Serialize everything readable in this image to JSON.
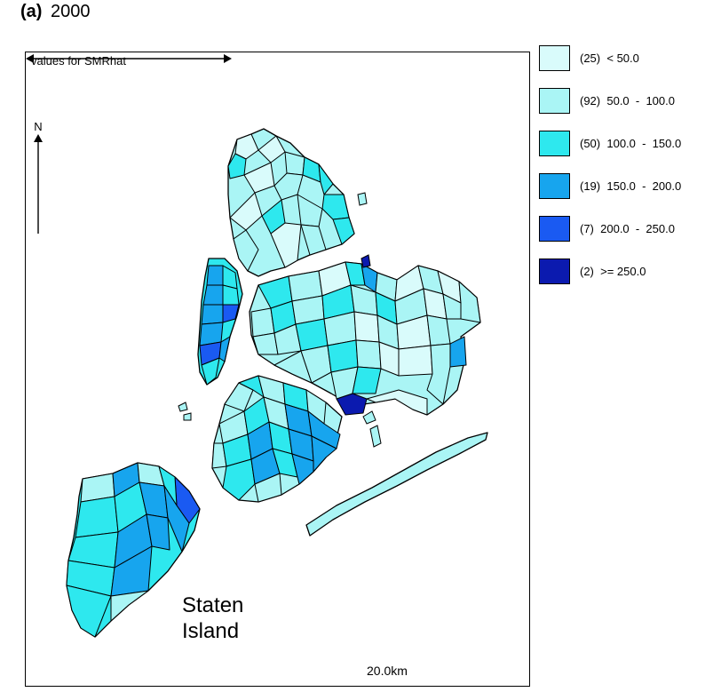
{
  "figure": {
    "panel_letter": "(a)",
    "year": "2000"
  },
  "map": {
    "caption": "values for SMRhat",
    "north_label": "N",
    "place_label_line1": "Staten",
    "place_label_line2": "Island",
    "scale_label": "20.0km"
  },
  "legend": {
    "items": [
      {
        "count": "(25)",
        "range": "< 50.0",
        "color": "#d9fbfb"
      },
      {
        "count": "(92)",
        "range": "50.0  -  100.0",
        "color": "#aaf5f5"
      },
      {
        "count": "(50)",
        "range": "100.0  -  150.0",
        "color": "#2ee8ee"
      },
      {
        "count": "(19)",
        "range": "150.0  -  200.0",
        "color": "#17a5ee"
      },
      {
        "count": "(7)",
        "range": "200.0  -  250.0",
        "color": "#1a5af2"
      },
      {
        "count": "(2)",
        "range": ">= 250.0",
        "color": "#0b1aaf"
      }
    ]
  }
}
